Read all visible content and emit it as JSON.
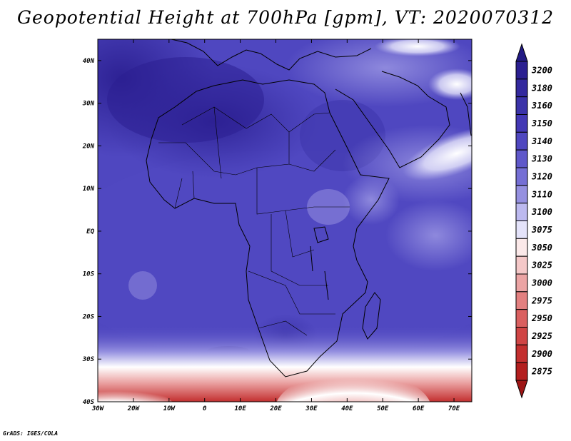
{
  "title": "Geopotential Height at 700hPa [gpm], VT: 2020070312",
  "credit": "GrADS: IGES/COLA",
  "map": {
    "lon_range": [
      -30,
      75
    ],
    "lat_range": [
      -40,
      45
    ],
    "lon_ticks": [
      {
        "value": -30,
        "label": "30W"
      },
      {
        "value": -20,
        "label": "20W"
      },
      {
        "value": -10,
        "label": "10W"
      },
      {
        "value": 0,
        "label": "0"
      },
      {
        "value": 10,
        "label": "10E"
      },
      {
        "value": 20,
        "label": "20E"
      },
      {
        "value": 30,
        "label": "30E"
      },
      {
        "value": 40,
        "label": "40E"
      },
      {
        "value": 50,
        "label": "50E"
      },
      {
        "value": 60,
        "label": "60E"
      },
      {
        "value": 70,
        "label": "70E"
      }
    ],
    "lat_ticks": [
      {
        "value": 40,
        "label": "40N"
      },
      {
        "value": 30,
        "label": "30N"
      },
      {
        "value": 20,
        "label": "20N"
      },
      {
        "value": 10,
        "label": "10N"
      },
      {
        "value": 0,
        "label": "EQ"
      },
      {
        "value": -10,
        "label": "10S"
      },
      {
        "value": -20,
        "label": "20S"
      },
      {
        "value": -30,
        "label": "30S"
      },
      {
        "value": -40,
        "label": "40S"
      }
    ]
  },
  "colorbar": {
    "levels": [
      {
        "label": "3200",
        "color": "#2b1f91"
      },
      {
        "label": "3180",
        "color": "#33299e"
      },
      {
        "label": "3160",
        "color": "#3b33a9"
      },
      {
        "label": "3150",
        "color": "#4338b5"
      },
      {
        "label": "3140",
        "color": "#4f47c0"
      },
      {
        "label": "3130",
        "color": "#5f58ca"
      },
      {
        "label": "3120",
        "color": "#756fd5"
      },
      {
        "label": "3110",
        "color": "#9590e0"
      },
      {
        "label": "3100",
        "color": "#bcb9ef"
      },
      {
        "label": "3075",
        "color": "#e4e3fa"
      },
      {
        "label": "3050",
        "color": "#fbe9e9"
      },
      {
        "label": "3025",
        "color": "#f4c8c8"
      },
      {
        "label": "3000",
        "color": "#eba4a4"
      },
      {
        "label": "2975",
        "color": "#e38080"
      },
      {
        "label": "2950",
        "color": "#da6060"
      },
      {
        "label": "2925",
        "color": "#d04545"
      },
      {
        "label": "2900",
        "color": "#c32f2f"
      },
      {
        "label": "2875",
        "color": "#b31e1e"
      }
    ],
    "top_arrow_color": "#221a84",
    "bottom_arrow_color": "#9e1515"
  }
}
